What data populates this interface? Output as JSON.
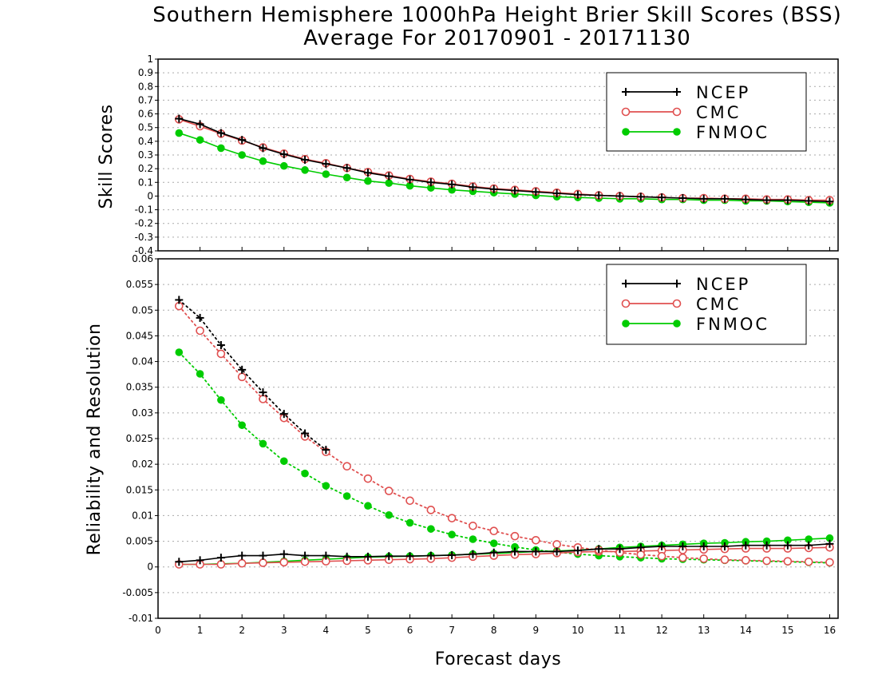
{
  "title_line1": "Southern Hemisphere 1000hPa Height Brier Skill Scores (BSS)",
  "title_line2": "Average For 20170901 - 20171130",
  "chart_data": [
    {
      "type": "line",
      "ylabel": "Skill Scores",
      "ylim": [
        -0.4,
        1
      ],
      "yticks": [
        "-0.4",
        "-0.3",
        "-0.2",
        "-0.1",
        "0",
        "0.1",
        "0.2",
        "0.3",
        "0.4",
        "0.5",
        "0.6",
        "0.7",
        "0.8",
        "0.9",
        "1"
      ],
      "xlim": [
        0,
        16.2
      ],
      "grid": "horizontal dotted",
      "legend": "top-right",
      "x": [
        0.5,
        1,
        1.5,
        2,
        2.5,
        3,
        3.5,
        4,
        4.5,
        5,
        5.5,
        6,
        6.5,
        7,
        7.5,
        8,
        8.5,
        9,
        9.5,
        10,
        10.5,
        11,
        11.5,
        12,
        12.5,
        13,
        13.5,
        14,
        14.5,
        15,
        15.5,
        16
      ],
      "series": [
        {
          "name": "NCEP",
          "color": "#000000",
          "marker": "plus",
          "values": [
            0.565,
            0.525,
            0.46,
            0.41,
            0.35,
            0.305,
            0.265,
            0.235,
            0.205,
            0.17,
            0.145,
            0.12,
            0.1,
            0.085,
            0.065,
            0.05,
            0.04,
            0.03,
            0.02,
            0.01,
            0.005,
            0,
            -0.005,
            -0.01,
            -0.015,
            -0.02,
            -0.02,
            -0.025,
            -0.03,
            -0.03,
            -0.035,
            -0.04
          ]
        },
        {
          "name": "CMC",
          "color": "#e05050",
          "marker": "open-circle",
          "values": [
            0.56,
            0.51,
            0.455,
            0.405,
            0.355,
            0.31,
            0.27,
            0.24,
            0.205,
            0.175,
            0.15,
            0.125,
            0.105,
            0.09,
            0.07,
            0.055,
            0.045,
            0.035,
            0.025,
            0.015,
            0.005,
            0,
            -0.005,
            -0.01,
            -0.015,
            -0.015,
            -0.02,
            -0.02,
            -0.025,
            -0.025,
            -0.03,
            -0.03
          ]
        },
        {
          "name": "FNMOC",
          "color": "#00cc00",
          "marker": "filled-circle",
          "values": [
            0.46,
            0.41,
            0.35,
            0.3,
            0.255,
            0.22,
            0.19,
            0.16,
            0.135,
            0.11,
            0.095,
            0.075,
            0.06,
            0.045,
            0.035,
            0.025,
            0.015,
            0.005,
            -0.005,
            -0.01,
            -0.015,
            -0.02,
            -0.02,
            -0.025,
            -0.025,
            -0.03,
            -0.03,
            -0.035,
            -0.035,
            -0.04,
            -0.045,
            -0.05
          ]
        }
      ]
    },
    {
      "type": "line",
      "ylabel": "Reliability and Resolution",
      "xlabel": "Forecast days",
      "ylim": [
        -0.01,
        0.06
      ],
      "yticks": [
        "-0.01",
        "-0.005",
        "0",
        "0.005",
        "0.01",
        "0.015",
        "0.02",
        "0.025",
        "0.03",
        "0.035",
        "0.04",
        "0.045",
        "0.05",
        "0.055",
        "0.06"
      ],
      "xlim": [
        0,
        16.2
      ],
      "xticks": [
        "0",
        "1",
        "2",
        "3",
        "4",
        "5",
        "6",
        "7",
        "8",
        "9",
        "10",
        "11",
        "12",
        "13",
        "14",
        "15",
        "16"
      ],
      "grid": "horizontal dotted",
      "legend": "top-right",
      "x": [
        0.5,
        1,
        1.5,
        2,
        2.5,
        3,
        3.5,
        4,
        4.5,
        5,
        5.5,
        6,
        6.5,
        7,
        7.5,
        8,
        8.5,
        9,
        9.5,
        10,
        10.5,
        11,
        11.5,
        12,
        12.5,
        13,
        13.5,
        14,
        14.5,
        15,
        15.5,
        16
      ],
      "series": [
        {
          "name": "NCEP",
          "color": "#000000",
          "marker": "plus",
          "component": "reliability",
          "line": "solid",
          "values": [
            0.001,
            0.0013,
            0.0018,
            0.0022,
            0.0022,
            0.0025,
            0.0022,
            0.0022,
            0.002,
            0.002,
            0.0021,
            0.0021,
            0.0022,
            0.0023,
            0.0025,
            0.0028,
            0.003,
            0.003,
            0.003,
            0.0032,
            0.0035,
            0.0035,
            0.0038,
            0.004,
            0.004,
            0.004,
            0.004,
            0.0042,
            0.0042,
            0.0042,
            0.0042,
            0.0045
          ]
        },
        {
          "name": "NCEP",
          "color": "#000000",
          "marker": "plus",
          "component": "resolution",
          "line": "dotted",
          "values": [
            0.052,
            0.0485,
            0.0432,
            0.0384,
            0.034,
            0.0298,
            0.026,
            0.0228,
            null,
            null,
            null,
            null,
            null,
            null,
            null,
            null,
            null,
            null,
            null,
            null,
            null,
            null,
            null,
            null,
            null,
            null,
            null,
            null,
            null,
            null,
            null,
            null
          ]
        },
        {
          "name": "CMC",
          "color": "#e05050",
          "marker": "open-circle",
          "component": "reliability",
          "line": "solid",
          "values": [
            0.0005,
            0.0005,
            0.0005,
            0.0007,
            0.0008,
            0.0009,
            0.001,
            0.0011,
            0.0012,
            0.0013,
            0.0014,
            0.0015,
            0.0016,
            0.0018,
            0.002,
            0.0022,
            0.0024,
            0.0025,
            0.0027,
            0.0029,
            0.003,
            0.003,
            0.0031,
            0.0032,
            0.0033,
            0.0034,
            0.0035,
            0.0036,
            0.0036,
            0.0036,
            0.0037,
            0.0038
          ]
        },
        {
          "name": "CMC",
          "color": "#e05050",
          "marker": "open-circle",
          "component": "resolution",
          "line": "dotted",
          "values": [
            0.0508,
            0.046,
            0.0415,
            0.037,
            0.0327,
            0.029,
            0.0254,
            0.0224,
            0.0196,
            0.0172,
            0.0148,
            0.0129,
            0.0111,
            0.0095,
            0.008,
            0.007,
            0.006,
            0.0052,
            0.0044,
            0.0038,
            0.0033,
            0.0028,
            0.0024,
            0.0021,
            0.0018,
            0.0016,
            0.0014,
            0.0013,
            0.0012,
            0.0011,
            0.001,
            0.0009
          ]
        },
        {
          "name": "FNMOC",
          "color": "#00cc00",
          "marker": "filled-circle",
          "component": "reliability",
          "line": "solid",
          "values": [
            0.0005,
            0.0005,
            0.0006,
            0.0007,
            0.0009,
            0.0011,
            0.0013,
            0.0015,
            0.0017,
            0.0019,
            0.002,
            0.0021,
            0.0022,
            0.0023,
            0.0025,
            0.0026,
            0.0028,
            0.003,
            0.0031,
            0.0033,
            0.0035,
            0.0038,
            0.004,
            0.0042,
            0.0044,
            0.0046,
            0.0047,
            0.0049,
            0.005,
            0.0052,
            0.0054,
            0.0056
          ]
        },
        {
          "name": "FNMOC",
          "color": "#00cc00",
          "marker": "filled-circle",
          "component": "resolution",
          "line": "dotted",
          "values": [
            0.0418,
            0.0376,
            0.0325,
            0.0276,
            0.024,
            0.0206,
            0.0182,
            0.0158,
            0.0138,
            0.0119,
            0.0101,
            0.0086,
            0.0074,
            0.0063,
            0.0054,
            0.0046,
            0.0039,
            0.0033,
            0.0029,
            0.0025,
            0.0022,
            0.002,
            0.0018,
            0.0016,
            0.0015,
            0.0014,
            0.0013,
            0.0012,
            0.0011,
            0.001,
            0.0009,
            0.0008
          ]
        }
      ]
    }
  ]
}
